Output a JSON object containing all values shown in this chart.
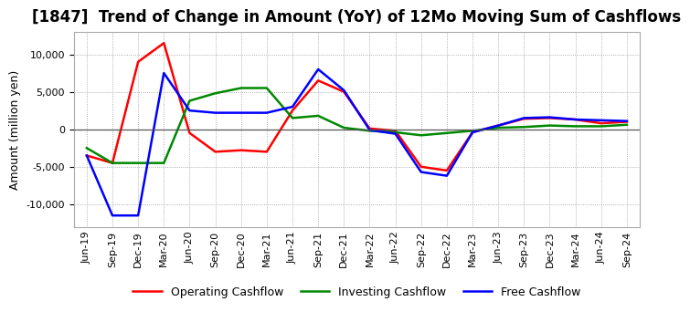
{
  "title": "[1847]  Trend of Change in Amount (YoY) of 12Mo Moving Sum of Cashflows",
  "ylabel": "Amount (million yen)",
  "x_labels": [
    "Jun-19",
    "Sep-19",
    "Dec-19",
    "Mar-20",
    "Jun-20",
    "Sep-20",
    "Dec-20",
    "Mar-21",
    "Jun-21",
    "Sep-21",
    "Dec-21",
    "Mar-22",
    "Jun-22",
    "Sep-22",
    "Dec-22",
    "Mar-23",
    "Jun-23",
    "Sep-23",
    "Dec-23",
    "Mar-24",
    "Jun-24",
    "Sep-24"
  ],
  "operating": [
    -3500,
    -4500,
    9000,
    11500,
    -500,
    -3000,
    -2800,
    -3000,
    2500,
    6500,
    5000,
    100,
    -200,
    -5000,
    -5500,
    -400,
    500,
    1400,
    1500,
    1300,
    800,
    1000
  ],
  "investing": [
    -2500,
    -4500,
    -4500,
    -4500,
    3800,
    4800,
    5500,
    5500,
    1500,
    1800,
    200,
    -200,
    -400,
    -800,
    -500,
    -200,
    200,
    300,
    500,
    400,
    400,
    600
  ],
  "free": [
    -3500,
    -11500,
    -11500,
    7500,
    2500,
    2200,
    2200,
    2200,
    3000,
    8000,
    5200,
    -100,
    -600,
    -5700,
    -6200,
    -400,
    500,
    1500,
    1600,
    1300,
    1200,
    1100
  ],
  "ylim": [
    -13000,
    13000
  ],
  "yticks": [
    -10000,
    -5000,
    0,
    5000,
    10000
  ],
  "operating_color": "#ff0000",
  "investing_color": "#008800",
  "free_color": "#0000ff",
  "bg_color": "#ffffff",
  "grid_color": "#999999",
  "zero_line_color": "#555555",
  "linewidth": 1.8,
  "title_fontsize": 12,
  "label_fontsize": 9,
  "tick_fontsize": 8,
  "legend_fontsize": 9
}
